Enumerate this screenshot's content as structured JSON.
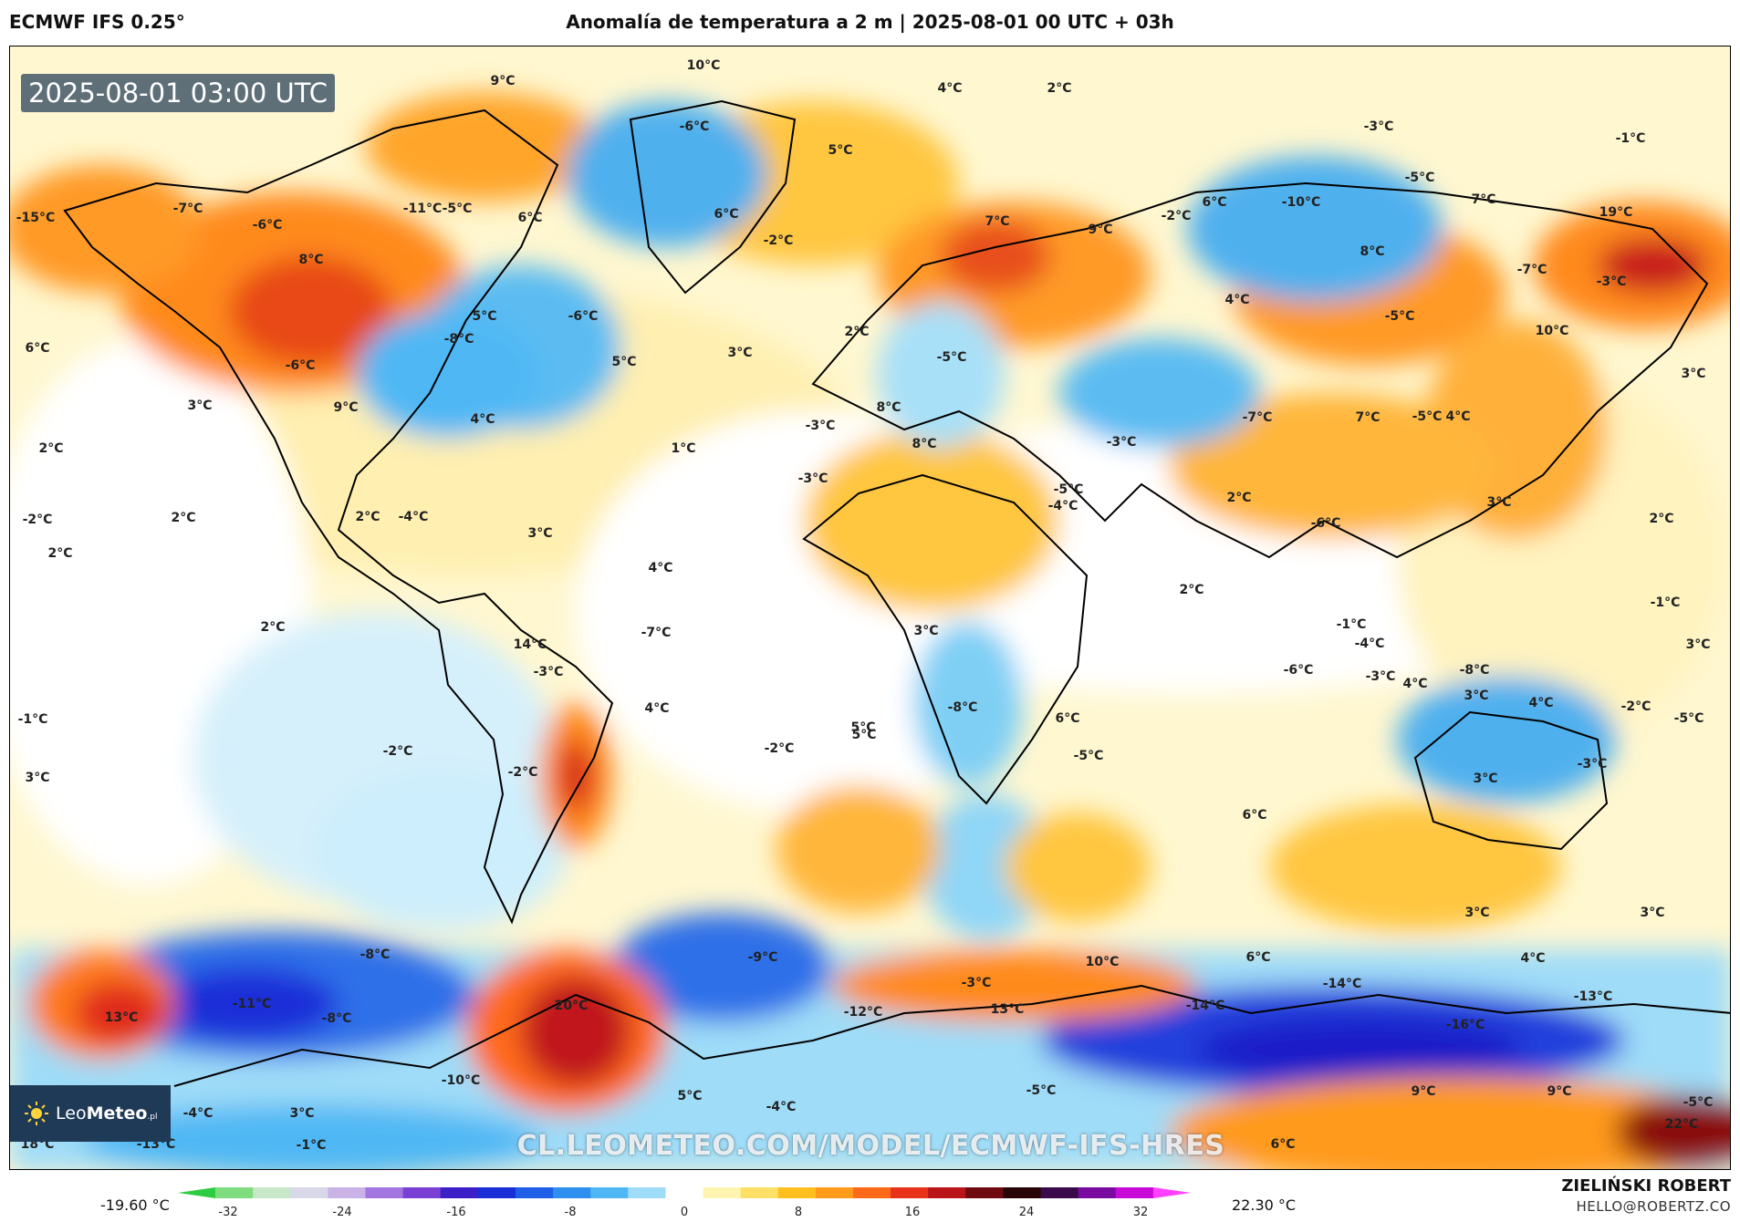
{
  "header": {
    "model": "ECMWF IFS 0.25°",
    "title": "Anomalía de temperatura a 2 m | 2025-08-01 00 UTC + 03h"
  },
  "timestamp_badge": "2025-08-01 03:00 UTC",
  "logo": {
    "brand_light": "Leo",
    "brand_bold": "Meteo",
    "suffix": ".pl"
  },
  "watermark": "CL.LEOMETEO.COM/MODEL/ECMWF-IFS-HRES",
  "scale": {
    "min_label": "-19.60 °C",
    "max_label": "22.30 °C",
    "ticks": [
      "-32",
      "-24",
      "-16",
      "-8",
      "0",
      "8",
      "16",
      "24",
      "32"
    ],
    "colors": [
      "#2ecc40",
      "#7fdc7f",
      "#c8e6c8",
      "#d8d8e8",
      "#c9b2e6",
      "#a275e0",
      "#7a3fd4",
      "#3d1fc8",
      "#1a2fd8",
      "#1f5fe8",
      "#2f8fef",
      "#4fb8f4",
      "#9fdcf8",
      "#ffffff",
      "#fff5b0",
      "#ffe066",
      "#ffc01f",
      "#ff9a1a",
      "#ff6a1a",
      "#e8321a",
      "#b8141a",
      "#6e0a10",
      "#2a0508",
      "#3a0a4a",
      "#7a0aa0",
      "#c80ad8",
      "#ff40ff"
    ]
  },
  "author": {
    "name": "ZIELIŃSKI ROBERT",
    "email": "HELLO@ROBERTZ.CO"
  },
  "map_labels": [
    {
      "t": "9°C"
    },
    {
      "t": "10°C"
    },
    {
      "t": "4°C"
    },
    {
      "t": "2°C"
    },
    {
      "t": "-6°C"
    },
    {
      "t": "5°C"
    },
    {
      "t": "-3°C"
    },
    {
      "t": "-1°C"
    },
    {
      "t": "-15°C"
    },
    {
      "t": "-7°C"
    },
    {
      "t": "-6°C"
    },
    {
      "t": "-11°C"
    },
    {
      "t": "-5°C"
    },
    {
      "t": "6°C"
    },
    {
      "t": "6°C"
    },
    {
      "t": "-2°C"
    },
    {
      "t": "7°C"
    },
    {
      "t": "9°C"
    },
    {
      "t": "-2°C"
    },
    {
      "t": "6°C"
    },
    {
      "t": "-10°C"
    },
    {
      "t": "-5°C"
    },
    {
      "t": "7°C"
    },
    {
      "t": "19°C"
    },
    {
      "t": "8°C"
    },
    {
      "t": "5°C"
    },
    {
      "t": "-6°C"
    },
    {
      "t": "8°C"
    },
    {
      "t": "-7°C"
    },
    {
      "t": "-3°C"
    },
    {
      "t": "4°C"
    },
    {
      "t": "-5°C"
    },
    {
      "t": "10°C"
    },
    {
      "t": "6°C"
    },
    {
      "t": "-6°C"
    },
    {
      "t": "-8°C"
    },
    {
      "t": "2°C"
    },
    {
      "t": "5°C"
    },
    {
      "t": "3°C"
    },
    {
      "t": "-5°C"
    },
    {
      "t": "4°C"
    },
    {
      "t": "8°C"
    },
    {
      "t": "-3°C"
    },
    {
      "t": "-7°C"
    },
    {
      "t": "3°C"
    },
    {
      "t": "9°C"
    },
    {
      "t": "4°C"
    },
    {
      "t": "-3°C"
    },
    {
      "t": "7°C"
    },
    {
      "t": "-5°C"
    },
    {
      "t": "2°C"
    },
    {
      "t": "1°C"
    },
    {
      "t": "8°C"
    },
    {
      "t": "-4°C"
    },
    {
      "t": "-3°C"
    },
    {
      "t": "-5°C"
    },
    {
      "t": "-4°C"
    },
    {
      "t": "2°C"
    },
    {
      "t": "-2°C"
    },
    {
      "t": "2°C"
    },
    {
      "t": "3°C"
    },
    {
      "t": "-6°C"
    },
    {
      "t": "3°C"
    },
    {
      "t": "-1°C"
    },
    {
      "t": "2°C"
    },
    {
      "t": "2°C"
    },
    {
      "t": "4°C"
    },
    {
      "t": "-3°C"
    },
    {
      "t": "-1°C"
    },
    {
      "t": "5°C"
    },
    {
      "t": "2°C"
    },
    {
      "t": "4°C"
    },
    {
      "t": "3°C"
    },
    {
      "t": "-2°C"
    },
    {
      "t": "2°C"
    },
    {
      "t": "-7°C"
    },
    {
      "t": "3°C"
    },
    {
      "t": "-5°C"
    },
    {
      "t": "-4°C"
    },
    {
      "t": "-8°C"
    },
    {
      "t": "3°C"
    },
    {
      "t": "-3°C"
    },
    {
      "t": "-5°C"
    },
    {
      "t": "14°C"
    },
    {
      "t": "3°C"
    },
    {
      "t": "-8°C"
    },
    {
      "t": "-3°C"
    },
    {
      "t": "4°C"
    },
    {
      "t": "3°C"
    },
    {
      "t": "-6°C"
    },
    {
      "t": "2°C"
    },
    {
      "t": "4°C"
    },
    {
      "t": "5°C"
    },
    {
      "t": "-1°C"
    },
    {
      "t": "-2°C"
    },
    {
      "t": "-2°C"
    },
    {
      "t": "6°C"
    },
    {
      "t": "6°C"
    },
    {
      "t": "4°C"
    },
    {
      "t": "-2°C"
    },
    {
      "t": "3°C"
    },
    {
      "t": "3°C"
    },
    {
      "t": "3°C"
    },
    {
      "t": "6°C"
    },
    {
      "t": "-8°C"
    },
    {
      "t": "-11°C"
    },
    {
      "t": "-9°C"
    },
    {
      "t": "10°C"
    },
    {
      "t": "-3°C"
    },
    {
      "t": "13°C"
    },
    {
      "t": "-8°C"
    },
    {
      "t": "20°C"
    },
    {
      "t": "-12°C"
    },
    {
      "t": "13°C"
    },
    {
      "t": "-14°C"
    },
    {
      "t": "-14°C"
    },
    {
      "t": "-13°C"
    },
    {
      "t": "-16°C"
    },
    {
      "t": "-10°C"
    },
    {
      "t": "5°C"
    },
    {
      "t": "-4°C"
    },
    {
      "t": "-5°C"
    },
    {
      "t": "9°C"
    },
    {
      "t": "9°C"
    },
    {
      "t": "-5°C"
    },
    {
      "t": "22°C"
    },
    {
      "t": "-4°C"
    },
    {
      "t": "3°C"
    },
    {
      "t": "18°C"
    },
    {
      "t": "-13°C"
    },
    {
      "t": "-1°C"
    },
    {
      "t": "6°C"
    }
  ]
}
